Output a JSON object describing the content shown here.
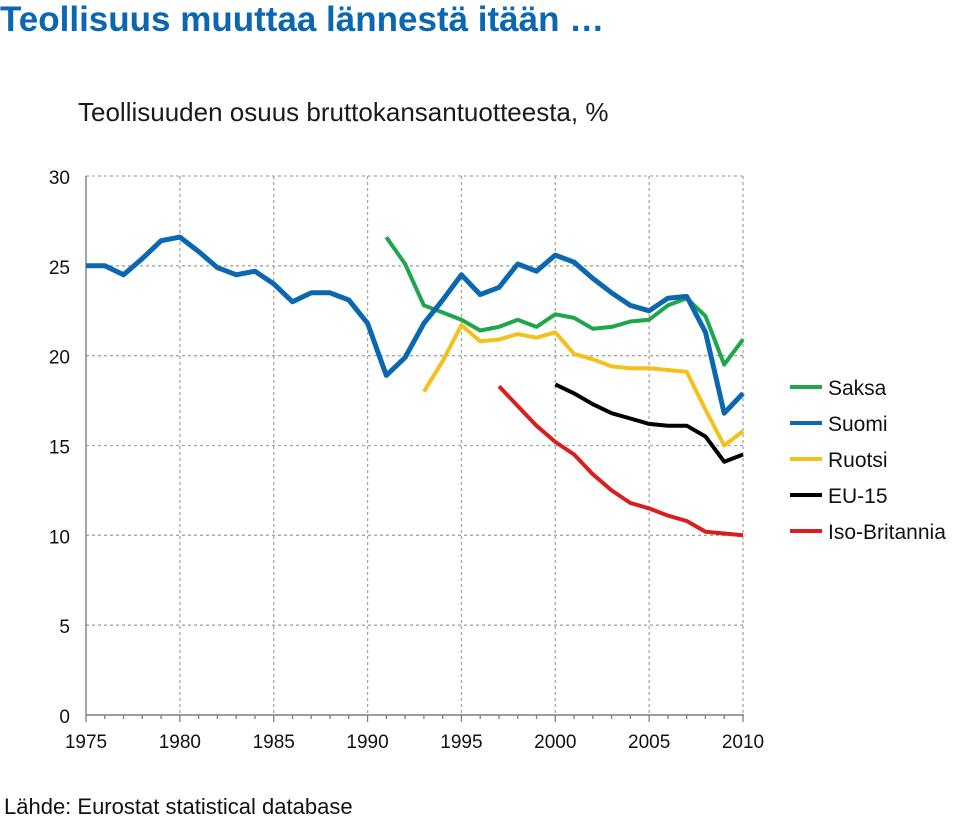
{
  "page": {
    "title": "Teollisuus muuttaa lännestä itään …",
    "source": "Lähde: Eurostat statistical database"
  },
  "colors": {
    "title": "#0a67b0",
    "grid": "#a6a6a6",
    "axis": "#7f7f7f"
  },
  "chart_data": {
    "type": "line",
    "title": "Teollisuuden osuus bruttokansantuotteesta, %",
    "xlabel": "",
    "ylabel": "",
    "xlim": [
      1975,
      2010
    ],
    "ylim": [
      0,
      30
    ],
    "y_ticks": [
      0,
      5,
      10,
      15,
      20,
      25,
      30
    ],
    "x_ticks": [
      1975,
      1980,
      1985,
      1990,
      1995,
      2000,
      2005,
      2010
    ],
    "grid": true,
    "legend_position": "right",
    "series": [
      {
        "name": "Saksa",
        "color": "#1fa64a",
        "x": [
          1991,
          1992,
          1993,
          1994,
          1995,
          1996,
          1997,
          1998,
          1999,
          2000,
          2001,
          2002,
          2003,
          2004,
          2005,
          2006,
          2007,
          2008,
          2009,
          2010
        ],
        "y": [
          26.6,
          25.1,
          22.8,
          22.4,
          22.0,
          21.4,
          21.6,
          22.0,
          21.6,
          22.3,
          22.1,
          21.5,
          21.6,
          21.9,
          22.0,
          22.8,
          23.2,
          22.2,
          19.5,
          20.9
        ]
      },
      {
        "name": "Suomi",
        "color": "#0a67b0",
        "x": [
          1975,
          1976,
          1977,
          1978,
          1979,
          1980,
          1981,
          1982,
          1983,
          1984,
          1985,
          1986,
          1987,
          1988,
          1989,
          1990,
          1991,
          1992,
          1993,
          1994,
          1995,
          1996,
          1997,
          1998,
          1999,
          2000,
          2001,
          2002,
          2003,
          2004,
          2005,
          2006,
          2007,
          2008,
          2009,
          2010
        ],
        "y": [
          25.0,
          25.0,
          24.5,
          25.4,
          26.4,
          26.6,
          25.8,
          24.9,
          24.5,
          24.7,
          24.0,
          23.0,
          23.5,
          23.5,
          23.1,
          21.8,
          18.9,
          19.9,
          21.8,
          23.1,
          24.5,
          23.4,
          23.8,
          25.1,
          24.7,
          25.6,
          25.2,
          24.3,
          23.5,
          22.8,
          22.5,
          23.2,
          23.3,
          21.3,
          16.8,
          17.9
        ]
      },
      {
        "name": "Ruotsi",
        "color": "#f4c01c",
        "x": [
          1993,
          1994,
          1995,
          1996,
          1997,
          1998,
          1999,
          2000,
          2001,
          2002,
          2003,
          2004,
          2005,
          2006,
          2007,
          2008,
          2009,
          2010
        ],
        "y": [
          18.0,
          19.7,
          21.7,
          20.8,
          20.9,
          21.2,
          21.0,
          21.3,
          20.1,
          19.8,
          19.4,
          19.3,
          19.3,
          19.2,
          19.1,
          17.0,
          15.0,
          15.8
        ]
      },
      {
        "name": "EU-15",
        "color": "#000000",
        "x": [
          2000,
          2001,
          2002,
          2003,
          2004,
          2005,
          2006,
          2007,
          2008,
          2009,
          2010
        ],
        "y": [
          18.4,
          17.9,
          17.3,
          16.8,
          16.5,
          16.2,
          16.1,
          16.1,
          15.5,
          14.1,
          14.5
        ]
      },
      {
        "name": "Iso-Britannia",
        "color": "#d91e1e",
        "x": [
          1997,
          1998,
          1999,
          2000,
          2001,
          2002,
          2003,
          2004,
          2005,
          2006,
          2007,
          2008,
          2009,
          2010
        ],
        "y": [
          18.3,
          17.2,
          16.1,
          15.2,
          14.5,
          13.4,
          12.5,
          11.8,
          11.5,
          11.1,
          10.8,
          10.2,
          10.1,
          10.0
        ]
      }
    ]
  }
}
